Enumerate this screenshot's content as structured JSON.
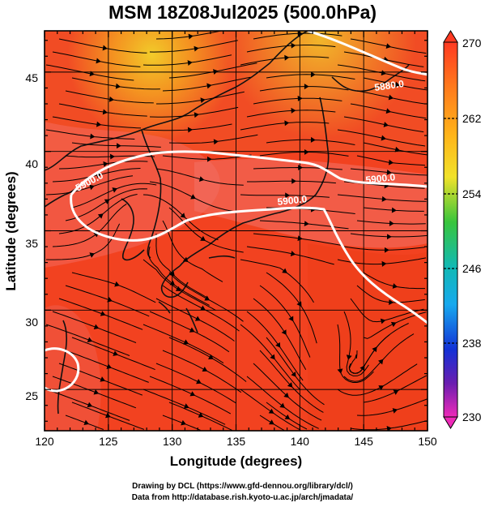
{
  "title": "MSM 18Z08Jul2025 (500.0hPa)",
  "axes": {
    "x_label": "Longitude (degrees)",
    "y_label": "Latitude  (degrees)",
    "x_ticks": [
      "120",
      "125",
      "130",
      "135",
      "140",
      "145",
      "150"
    ],
    "y_ticks": [
      "25",
      "30",
      "35",
      "40",
      "45"
    ],
    "x_range": [
      120,
      150
    ],
    "y_range": [
      22.4,
      47.6
    ]
  },
  "colorbar": {
    "ticks": [
      "270",
      "262",
      "254",
      "246",
      "238",
      "230"
    ],
    "range": [
      230,
      270
    ]
  },
  "contour_labels": [
    "5900.0",
    "5880.0",
    "5900.0",
    "5900.0"
  ],
  "credits": [
    "Drawing by DCL (https://www.gfd-dennou.org/library/dcl/)",
    "Data from http://database.rish.kyoto-u.ac.jp/arch/jmadata/"
  ]
}
